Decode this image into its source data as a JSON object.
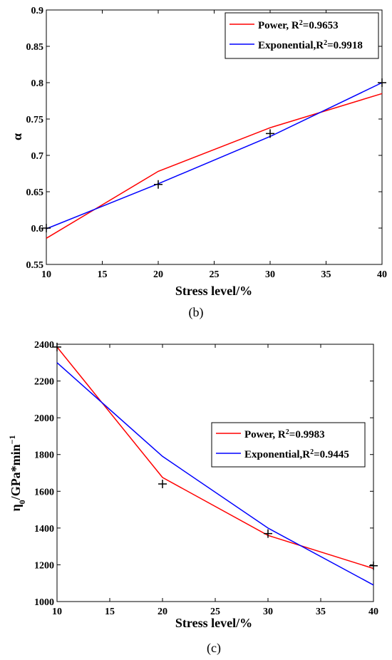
{
  "chart_data": [
    {
      "type": "line",
      "caption": "(b)",
      "xlabel": "Stress level/%",
      "ylabel": "α",
      "xlim": [
        10,
        40
      ],
      "ylim": [
        0.55,
        0.9
      ],
      "xticks": [
        10,
        15,
        20,
        25,
        30,
        35,
        40
      ],
      "yticks": [
        0.55,
        0.6,
        0.65,
        0.7,
        0.75,
        0.8,
        0.85,
        0.9
      ],
      "ytick_labels": [
        "0.55",
        "0.6",
        "0.65",
        "0.7",
        "0.75",
        "0.8",
        "0.85",
        "0.9"
      ],
      "grid": false,
      "legend_position": "top-right",
      "series": [
        {
          "name": "Power",
          "legend_label": "Power, R",
          "legend_value": "=0.9653",
          "color": "#ff0000",
          "x": [
            10,
            20,
            30,
            40
          ],
          "y": [
            0.586,
            0.678,
            0.738,
            0.785
          ]
        },
        {
          "name": "Exponential",
          "legend_label": "Exponential,R",
          "legend_value": "=0.9918",
          "color": "#0000ff",
          "x": [
            10,
            20,
            30,
            40
          ],
          "y": [
            0.599,
            0.661,
            0.726,
            0.8
          ]
        }
      ],
      "markers": {
        "x": [
          10,
          20,
          30,
          40
        ],
        "y": [
          0.6,
          0.66,
          0.73,
          0.8
        ]
      }
    },
    {
      "type": "line",
      "caption": "(c)",
      "xlabel": "Stress level/%",
      "ylabel": "η",
      "ylabel_sub": "0",
      "ylabel_rest": "/GPa*min",
      "ylabel_sup": "−1",
      "xlim": [
        10,
        40
      ],
      "ylim": [
        1000,
        2400
      ],
      "xticks": [
        10,
        15,
        20,
        25,
        30,
        35,
        40
      ],
      "yticks": [
        1000,
        1200,
        1400,
        1600,
        1800,
        2000,
        2200,
        2400
      ],
      "ytick_labels": [
        "1000",
        "1200",
        "1400",
        "1600",
        "1800",
        "2000",
        "2200",
        "2400"
      ],
      "grid": false,
      "legend_position": "upper-right",
      "series": [
        {
          "name": "Power",
          "legend_label": "Power, R",
          "legend_value": "=0.9983",
          "color": "#ff0000",
          "x": [
            10,
            20,
            30,
            40
          ],
          "y": [
            2385,
            1675,
            1360,
            1180
          ]
        },
        {
          "name": "Exponential",
          "legend_label": "Exponential,R",
          "legend_value": "=0.9445",
          "color": "#0000ff",
          "x": [
            10,
            20,
            30,
            40
          ],
          "y": [
            2300,
            1790,
            1400,
            1090
          ]
        }
      ],
      "markers": {
        "x": [
          10,
          20,
          30,
          40
        ],
        "y": [
          2385,
          1640,
          1370,
          1195
        ]
      }
    }
  ]
}
